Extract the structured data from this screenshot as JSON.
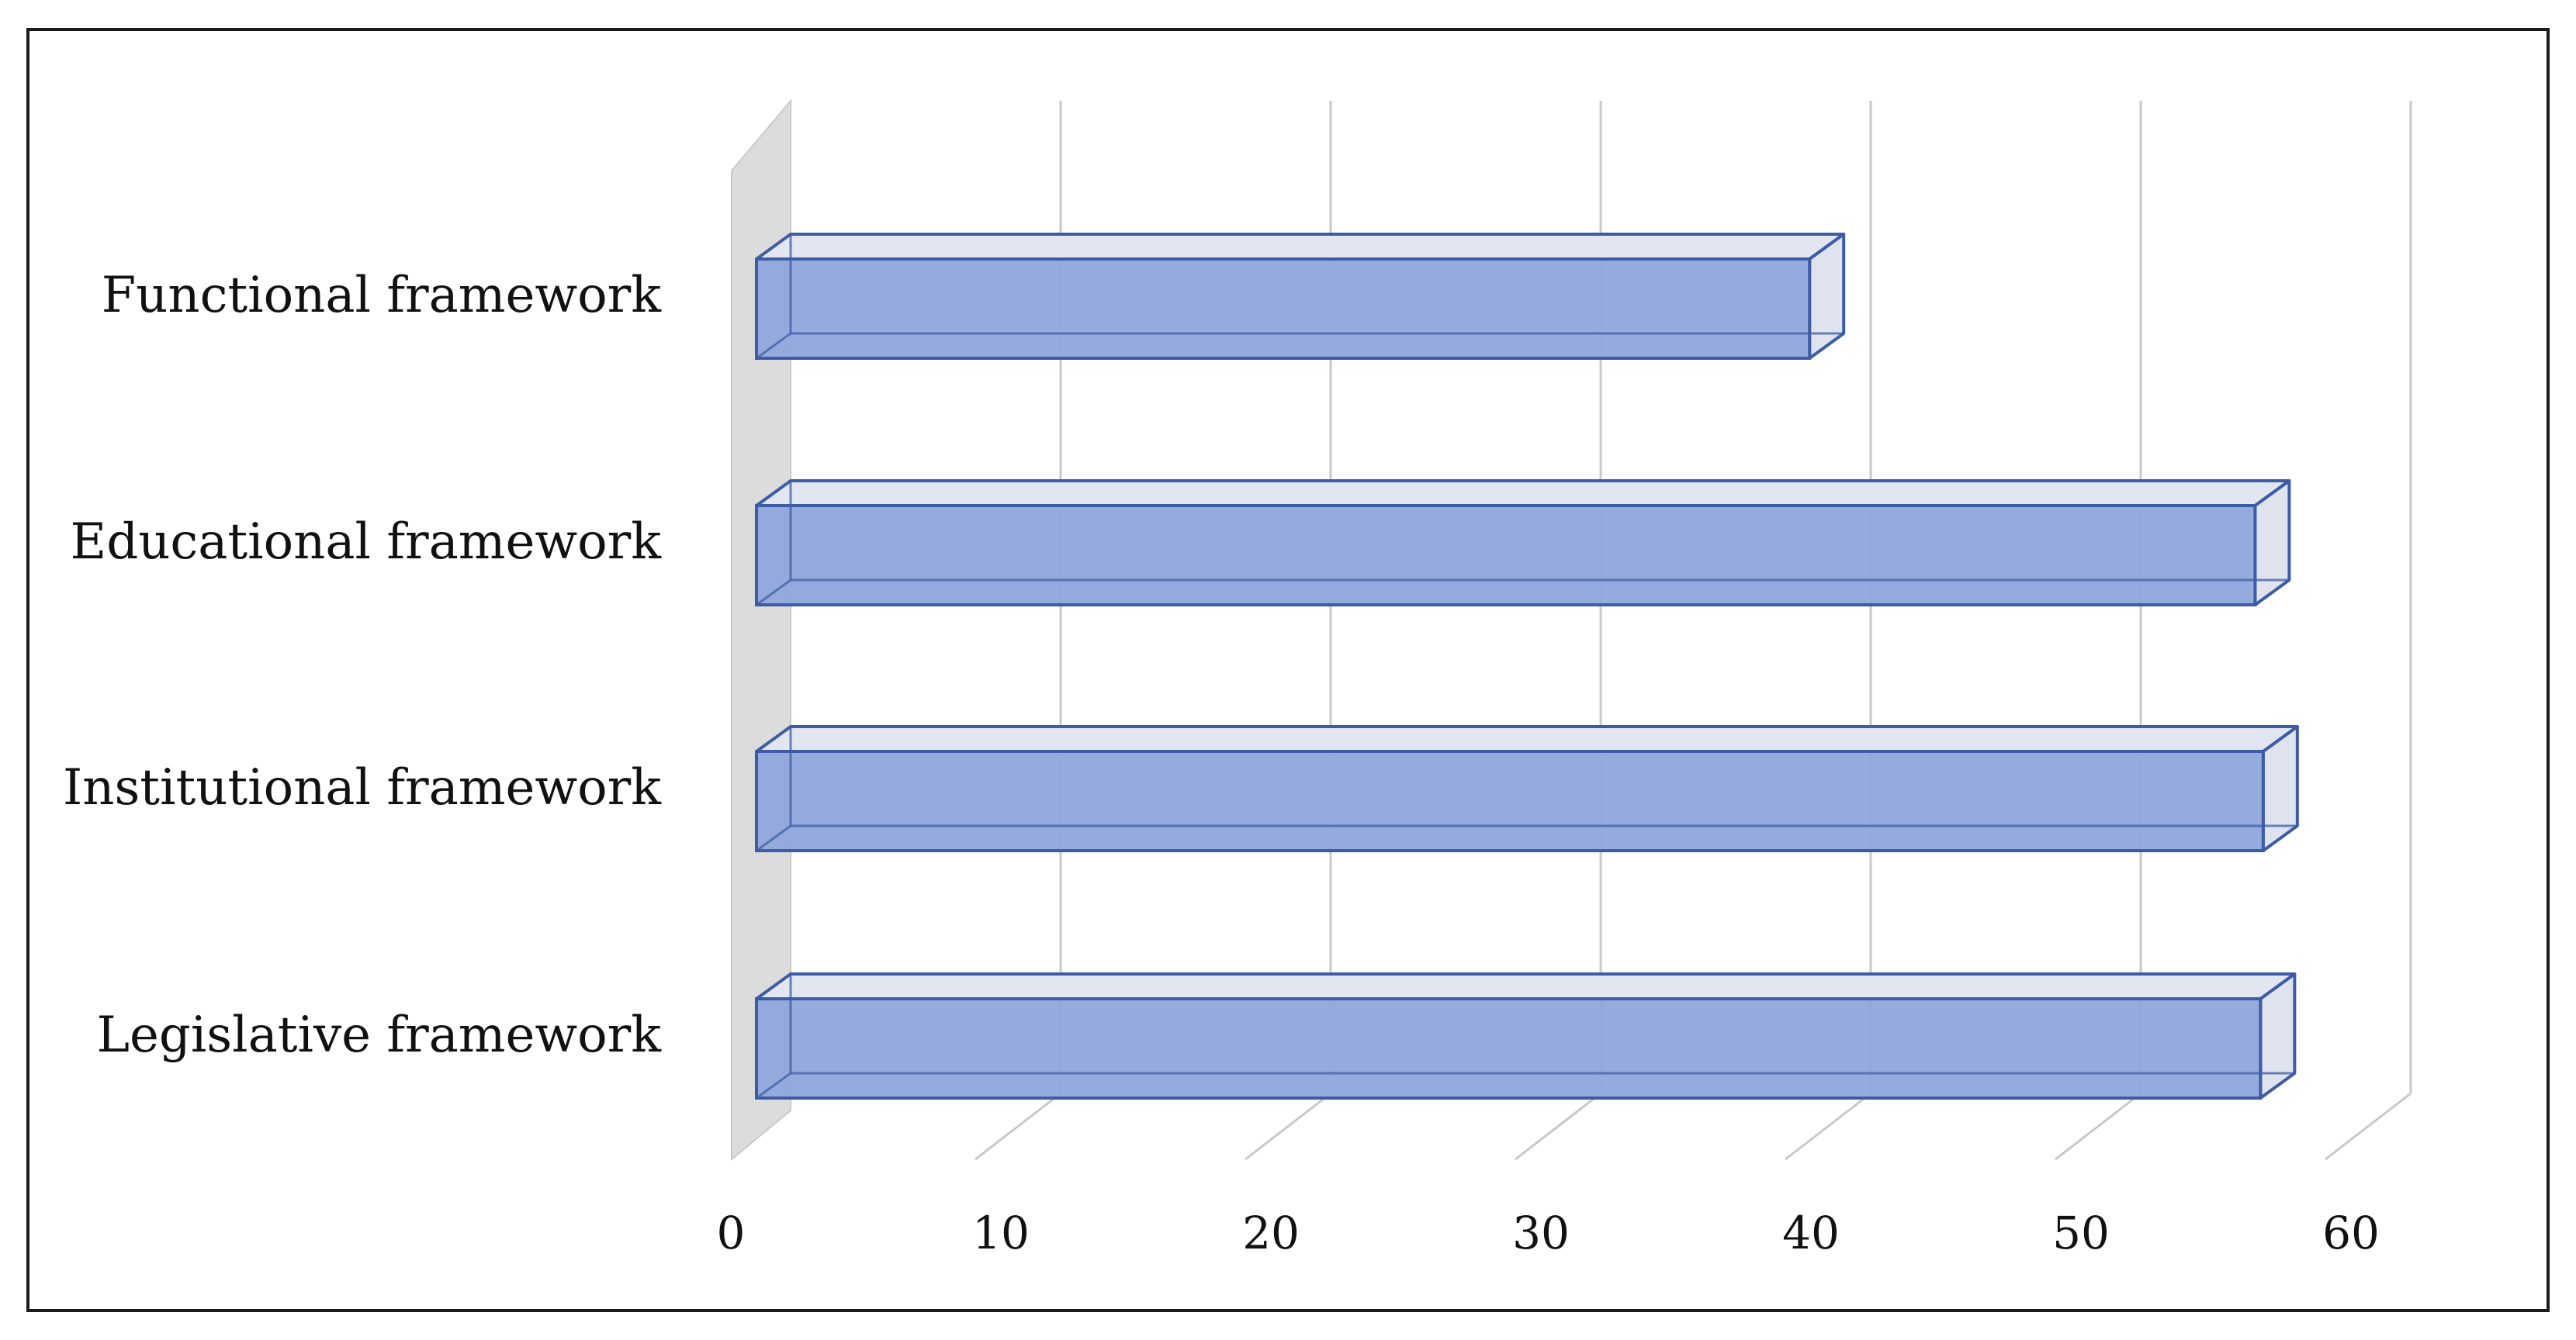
{
  "chart_data": {
    "type": "bar",
    "orientation": "horizontal",
    "style": "3d",
    "categories": [
      "Functional framework",
      "Educational framework",
      "Institutional framework",
      "Legislative framework"
    ],
    "values": [
      39,
      55.5,
      55.8,
      55.7
    ],
    "xlim": [
      0,
      60
    ],
    "xticks": [
      "0",
      "10",
      "20",
      "30",
      "40",
      "50",
      "60"
    ],
    "title": "",
    "xlabel": "",
    "ylabel": "",
    "grid": true,
    "legend": "none",
    "colors": {
      "bar_front": "#8fa7db",
      "bar_top": "#e2e6f0",
      "bar_side": "#dfe3ee",
      "bar_edge": "#3e5ca5",
      "back_wall": "#dcdcdc",
      "gridline": "#c8c8c8",
      "frame": "#1a1a1a"
    }
  }
}
